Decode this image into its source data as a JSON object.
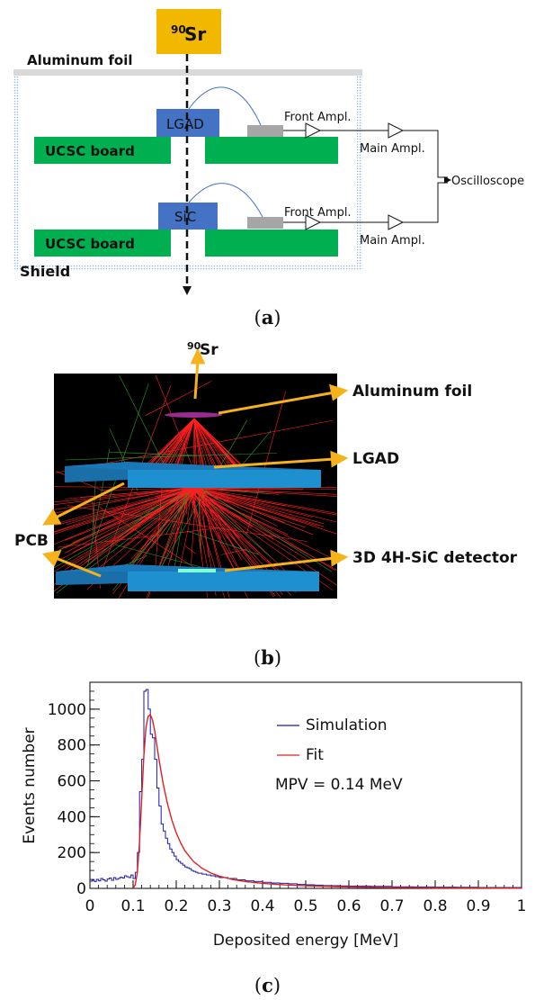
{
  "figure_a": {
    "source_label_main": "Sr",
    "source_label_sup": "90",
    "aluminum_foil_label": "Aluminum foil",
    "shield_label": "Shield",
    "board_label_top": "UCSC board",
    "board_label_bottom": "UCSC board",
    "lgad_label": "LGAD",
    "sic_label": "SiC",
    "front_ampl_top": "Front Ampl.",
    "front_ampl_bottom": "Front Ampl.",
    "main_ampl_top": "Main Ampl.",
    "main_ampl_bottom": "Main Ampl.",
    "oscilloscope_label": "Oscilloscope",
    "colors": {
      "source": "#f2b800",
      "board": "#00b050",
      "detector": "#4472c4",
      "shield": "#a9c4e8",
      "foil": "#d9d9d9",
      "amp": "#a6a6a6"
    }
  },
  "figure_b": {
    "source_label_main": "Sr",
    "source_label_sup": "90",
    "aluminum_foil_label": "Aluminum foil",
    "lgad_label": "LGAD",
    "pcb_label": "PCB",
    "sic_label": "3D 4H-SiC detector",
    "colors": {
      "background": "#000000",
      "plate": "#1e90d0",
      "tracks": "#ff2020",
      "secondary": "#2aa02a",
      "arrow": "#f5b21b"
    }
  },
  "captions": {
    "a": "a",
    "b": "b",
    "c": "c"
  },
  "chart_data": {
    "type": "line",
    "xlabel": "Deposited energy [MeV]",
    "ylabel": "Events number",
    "xlim": [
      0,
      1
    ],
    "ylim": [
      0,
      1150
    ],
    "x_ticks": [
      "0",
      "0.1",
      "0.2",
      "0.3",
      "0.4",
      "0.5",
      "0.6",
      "0.7",
      "0.8",
      "0.9",
      "1"
    ],
    "y_ticks": [
      "0",
      "200",
      "400",
      "600",
      "800",
      "1000"
    ],
    "legend_placement": "top-right",
    "annotation": "MPV = 0.14 MeV",
    "series": [
      {
        "name": "Simulation",
        "style": "step",
        "color": "#1a1aa8",
        "x": [
          0.0,
          0.005,
          0.01,
          0.015,
          0.02,
          0.025,
          0.03,
          0.035,
          0.04,
          0.045,
          0.05,
          0.055,
          0.06,
          0.065,
          0.07,
          0.075,
          0.08,
          0.085,
          0.09,
          0.095,
          0.1,
          0.105,
          0.11,
          0.115,
          0.12,
          0.125,
          0.13,
          0.135,
          0.14,
          0.145,
          0.15,
          0.155,
          0.16,
          0.165,
          0.17,
          0.175,
          0.18,
          0.185,
          0.19,
          0.195,
          0.2,
          0.205,
          0.21,
          0.215,
          0.22,
          0.225,
          0.23,
          0.235,
          0.24,
          0.245,
          0.25,
          0.26,
          0.27,
          0.28,
          0.29,
          0.3,
          0.32,
          0.34,
          0.36,
          0.38,
          0.4,
          0.42,
          0.44,
          0.46,
          0.48,
          0.5,
          0.52,
          0.54,
          0.56,
          0.58,
          0.6,
          0.65,
          0.7,
          0.75,
          0.8,
          0.85,
          0.9,
          0.95
        ],
        "y": [
          40,
          45,
          38,
          50,
          42,
          55,
          48,
          40,
          52,
          58,
          45,
          60,
          50,
          55,
          62,
          58,
          70,
          65,
          60,
          75,
          55,
          90,
          200,
          540,
          720,
          1100,
          1110,
          1000,
          860,
          840,
          720,
          560,
          460,
          360,
          320,
          280,
          250,
          220,
          200,
          180,
          160,
          150,
          140,
          130,
          120,
          115,
          110,
          100,
          95,
          90,
          85,
          80,
          75,
          70,
          65,
          60,
          55,
          48,
          42,
          38,
          34,
          30,
          28,
          26,
          22,
          20,
          18,
          16,
          15,
          14,
          13,
          11,
          9,
          8,
          7,
          6,
          5,
          5
        ]
      },
      {
        "name": "Fit",
        "style": "line",
        "color": "#e02020",
        "x": [
          0.1,
          0.105,
          0.11,
          0.115,
          0.12,
          0.125,
          0.13,
          0.135,
          0.14,
          0.145,
          0.15,
          0.155,
          0.16,
          0.17,
          0.18,
          0.19,
          0.2,
          0.21,
          0.22,
          0.24,
          0.26,
          0.28,
          0.3,
          0.33,
          0.36,
          0.4,
          0.45,
          0.5,
          0.55,
          0.6,
          0.65,
          0.7,
          0.75,
          0.8,
          0.85,
          0.9,
          0.95,
          1.0
        ],
        "y": [
          2,
          20,
          90,
          260,
          500,
          740,
          900,
          960,
          970,
          940,
          880,
          800,
          720,
          580,
          470,
          380,
          310,
          255,
          210,
          150,
          112,
          86,
          68,
          50,
          38,
          28,
          20,
          15,
          11,
          8,
          6,
          5,
          4,
          3,
          2,
          2,
          1,
          1
        ]
      }
    ]
  }
}
